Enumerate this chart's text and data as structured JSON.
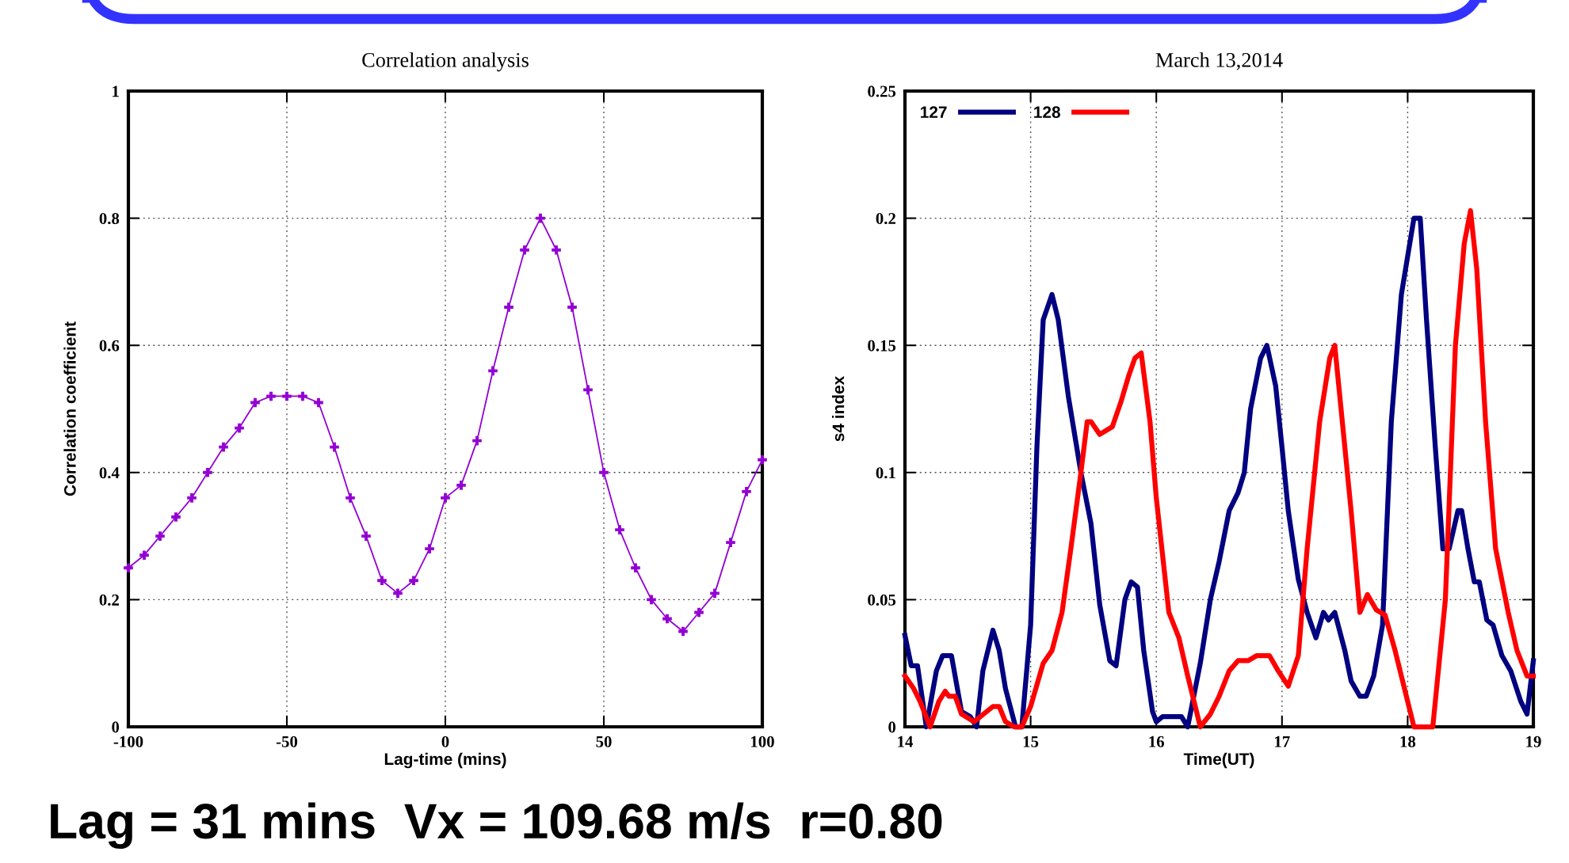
{
  "chart_data": [
    {
      "type": "line",
      "title": "Correlation analysis",
      "xlabel": "Lag-time (mins)",
      "ylabel": "Correlation coefficient",
      "xlim": [
        -100,
        100
      ],
      "ylim": [
        0,
        1
      ],
      "xticks": [
        -100,
        -50,
        0,
        50,
        100
      ],
      "yticks": [
        0,
        0.2,
        0.4,
        0.6,
        0.8,
        1
      ],
      "grid": true,
      "legend": false,
      "marker": "cross",
      "line_style": "solid",
      "annotations": [
        "Lag = 31 mins  Vx = 109.68 m/s  r=0.80"
      ],
      "series": [
        {
          "color": "#9400d3",
          "x": [
            -100,
            -95,
            -90,
            -85,
            -80,
            -75,
            -70,
            -65,
            -60,
            -55,
            -50,
            -45,
            -40,
            -35,
            -30,
            -25,
            -20,
            -15,
            -10,
            -5,
            0,
            5,
            10,
            15,
            20,
            25,
            30,
            35,
            40,
            45,
            50,
            55,
            60,
            65,
            70,
            75,
            80,
            85,
            90,
            95,
            100
          ],
          "values": [
            0.25,
            0.27,
            0.3,
            0.33,
            0.36,
            0.4,
            0.44,
            0.47,
            0.51,
            0.52,
            0.52,
            0.52,
            0.51,
            0.44,
            0.36,
            0.3,
            0.23,
            0.21,
            0.23,
            0.28,
            0.36,
            0.38,
            0.45,
            0.56,
            0.66,
            0.75,
            0.8,
            0.75,
            0.66,
            0.53,
            0.4,
            0.31,
            0.25,
            0.2,
            0.17,
            0.15,
            0.18,
            0.21,
            0.29,
            0.37,
            0.42
          ]
        }
      ]
    },
    {
      "type": "line",
      "title": "March 13,2014",
      "xlabel": "Time(UT)",
      "ylabel": "s4 index",
      "xlim": [
        14,
        19
      ],
      "ylim": [
        0,
        0.25
      ],
      "xticks": [
        14,
        15,
        16,
        17,
        18,
        19
      ],
      "yticks": [
        0,
        0.05,
        0.1,
        0.15,
        0.2,
        0.25
      ],
      "grid": true,
      "legend": "top left",
      "line_style": "solid",
      "series": [
        {
          "name": "127",
          "color": "#000080",
          "x": [
            14.0,
            14.05,
            14.1,
            14.17,
            14.25,
            14.3,
            14.37,
            14.45,
            14.52,
            14.57,
            14.62,
            14.7,
            14.75,
            14.8,
            14.88,
            14.93,
            15.0,
            15.05,
            15.1,
            15.17,
            15.22,
            15.3,
            15.4,
            15.48,
            15.55,
            15.63,
            15.68,
            15.75,
            15.8,
            15.85,
            15.9,
            15.97,
            16.0,
            16.05,
            16.2,
            16.25,
            16.35,
            16.43,
            16.5,
            16.58,
            16.65,
            16.7,
            16.75,
            16.83,
            16.88,
            16.95,
            17.0,
            17.05,
            17.13,
            17.2,
            17.27,
            17.33,
            17.37,
            17.42,
            17.5,
            17.55,
            17.62,
            17.67,
            17.73,
            17.8,
            17.87,
            17.95,
            18.0,
            18.05,
            18.1,
            18.15,
            18.22,
            18.28,
            18.33,
            18.4,
            18.43,
            18.48,
            18.53,
            18.57,
            18.63,
            18.68,
            18.75,
            18.82,
            18.9,
            18.95,
            19.0
          ],
          "values": [
            0.036,
            0.024,
            0.024,
            0.0,
            0.022,
            0.028,
            0.028,
            0.006,
            0.004,
            0.0,
            0.022,
            0.038,
            0.03,
            0.015,
            0.0,
            0.0,
            0.04,
            0.11,
            0.16,
            0.17,
            0.16,
            0.13,
            0.1,
            0.08,
            0.048,
            0.026,
            0.024,
            0.05,
            0.057,
            0.055,
            0.03,
            0.006,
            0.002,
            0.004,
            0.004,
            0.0,
            0.025,
            0.05,
            0.065,
            0.085,
            0.092,
            0.1,
            0.125,
            0.145,
            0.15,
            0.134,
            0.11,
            0.085,
            0.058,
            0.045,
            0.035,
            0.045,
            0.042,
            0.045,
            0.03,
            0.018,
            0.012,
            0.012,
            0.02,
            0.04,
            0.12,
            0.17,
            0.185,
            0.2,
            0.2,
            0.16,
            0.11,
            0.07,
            0.07,
            0.085,
            0.085,
            0.07,
            0.057,
            0.057,
            0.042,
            0.04,
            0.028,
            0.022,
            0.01,
            0.005,
            0.026
          ]
        },
        {
          "name": "128",
          "color": "#ff0000",
          "x": [
            14.0,
            14.07,
            14.12,
            14.2,
            14.27,
            14.32,
            14.35,
            14.4,
            14.45,
            14.55,
            14.6,
            14.7,
            14.75,
            14.8,
            14.87,
            14.93,
            15.0,
            15.1,
            15.17,
            15.25,
            15.32,
            15.4,
            15.45,
            15.48,
            15.55,
            15.65,
            15.72,
            15.78,
            15.83,
            15.88,
            15.95,
            16.0,
            16.1,
            16.18,
            16.25,
            16.35,
            16.43,
            16.5,
            16.58,
            16.65,
            16.73,
            16.8,
            16.9,
            16.97,
            17.05,
            17.13,
            17.2,
            17.3,
            17.38,
            17.42,
            17.48,
            17.55,
            17.62,
            17.68,
            17.75,
            17.82,
            17.9,
            18.0,
            18.05,
            18.2,
            18.3,
            18.38,
            18.45,
            18.5,
            18.55,
            18.62,
            18.7,
            18.8,
            18.87,
            18.95,
            19.0
          ],
          "values": [
            0.02,
            0.015,
            0.01,
            0.0,
            0.01,
            0.014,
            0.012,
            0.012,
            0.005,
            0.002,
            0.004,
            0.008,
            0.008,
            0.002,
            0.0,
            0.0,
            0.008,
            0.025,
            0.03,
            0.045,
            0.07,
            0.1,
            0.12,
            0.12,
            0.115,
            0.118,
            0.128,
            0.138,
            0.145,
            0.147,
            0.12,
            0.09,
            0.045,
            0.035,
            0.02,
            0.0,
            0.005,
            0.012,
            0.022,
            0.026,
            0.026,
            0.028,
            0.028,
            0.022,
            0.016,
            0.028,
            0.07,
            0.12,
            0.145,
            0.15,
            0.12,
            0.085,
            0.045,
            0.052,
            0.046,
            0.044,
            0.03,
            0.01,
            0.0,
            0.0,
            0.05,
            0.15,
            0.19,
            0.203,
            0.18,
            0.12,
            0.07,
            0.045,
            0.03,
            0.02,
            0.02
          ]
        }
      ]
    }
  ]
}
